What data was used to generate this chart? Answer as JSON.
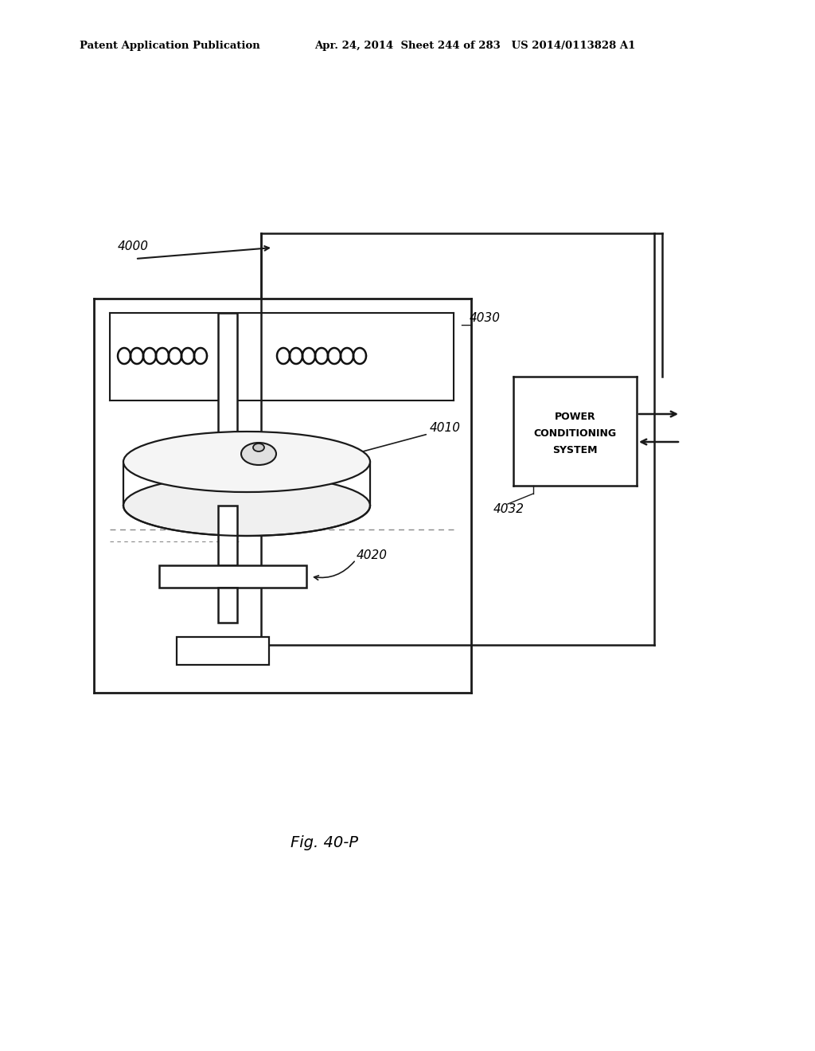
{
  "bg_color": "#ffffff",
  "header_left": "Patent Application Publication",
  "header_right": "Apr. 24, 2014  Sheet 244 of 283   US 2014/0113828 A1",
  "fig_label": "Fig. 40-P",
  "label_4000": "4000",
  "label_4010": "4010",
  "label_4020": "4020",
  "label_4030": "4030",
  "label_4032": "4032",
  "power_line1": "POWER",
  "power_line2": "CONDITIONING",
  "power_line3": "SYSTEM",
  "line_color": "#1a1a1a",
  "coil_color": "#111111"
}
